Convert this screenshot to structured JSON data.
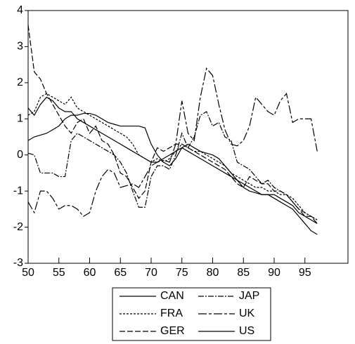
{
  "chart_data": {
    "type": "line",
    "x": [
      50,
      51,
      52,
      53,
      54,
      55,
      56,
      57,
      58,
      59,
      60,
      61,
      62,
      63,
      64,
      65,
      66,
      67,
      68,
      69,
      70,
      71,
      72,
      73,
      74,
      75,
      76,
      77,
      78,
      79,
      80,
      81,
      82,
      83,
      84,
      85,
      86,
      87,
      88,
      89,
      90,
      91,
      92,
      93,
      94,
      95,
      96,
      97
    ],
    "xlim": [
      50,
      102
    ],
    "xticks": [
      50,
      55,
      60,
      65,
      70,
      75,
      80,
      85,
      90,
      95
    ],
    "ylim": [
      -3,
      4
    ],
    "yticks": [
      -3,
      -2,
      -1,
      0,
      1,
      2,
      3,
      4
    ],
    "series": [
      {
        "name": "CAN",
        "color": "#000000",
        "dash": "none",
        "values": [
          0.4,
          0.5,
          0.55,
          0.6,
          0.7,
          0.8,
          1.0,
          1.1,
          1.1,
          1.15,
          1.15,
          1.1,
          1.0,
          0.9,
          0.85,
          0.8,
          0.8,
          0.8,
          0.8,
          0.75,
          0.3,
          0.0,
          -0.2,
          -0.3,
          -0.1,
          0.2,
          0.3,
          0.2,
          0.1,
          0.05,
          0.0,
          -0.1,
          -0.3,
          -0.5,
          -0.7,
          -0.9,
          -1.0,
          -1.05,
          -1.1,
          -1.1,
          -1.1,
          -1.2,
          -1.3,
          -1.4,
          -1.6,
          -1.7,
          -1.8,
          -1.9
        ]
      },
      {
        "name": "FRA",
        "color": "#000000",
        "dash": "3,2",
        "values": [
          1.1,
          1.2,
          1.6,
          1.7,
          1.6,
          1.5,
          1.4,
          1.6,
          1.3,
          1.2,
          1.1,
          1.0,
          0.9,
          0.8,
          0.7,
          0.6,
          0.5,
          0.3,
          0.0,
          -0.1,
          -0.2,
          -0.1,
          -0.2,
          -0.1,
          0.1,
          0.3,
          0.2,
          0.1,
          0.1,
          0.0,
          -0.1,
          -0.2,
          -0.3,
          -0.5,
          -0.6,
          -0.7,
          -0.8,
          -0.9,
          -0.9,
          -1.0,
          -1.0,
          -1.1,
          -1.1,
          -1.2,
          -1.4,
          -1.6,
          -1.7,
          -1.8
        ]
      },
      {
        "name": "GER",
        "color": "#000000",
        "dash": "8,3",
        "values": [
          3.6,
          2.3,
          2.1,
          1.7,
          1.4,
          1.1,
          0.8,
          0.6,
          0.9,
          1.0,
          0.6,
          0.8,
          0.4,
          0.3,
          0.0,
          -0.5,
          -0.6,
          -0.9,
          -1.2,
          -1.0,
          -0.2,
          0.2,
          0.1,
          0.2,
          0.3,
          0.3,
          0.2,
          0.1,
          0.0,
          -0.1,
          -0.2,
          -0.3,
          -0.4,
          -0.6,
          -0.8,
          -0.9,
          -0.6,
          -0.7,
          -0.8,
          -0.8,
          -1.0,
          -1.0,
          -1.1,
          -1.3,
          -1.5,
          -1.7,
          -1.7,
          -1.9
        ]
      },
      {
        "name": "JAP",
        "color": "#000000",
        "dash": "8,2,2,2",
        "values": [
          0.05,
          0.0,
          -0.5,
          -0.5,
          -0.5,
          -0.6,
          -0.6,
          0.4,
          0.6,
          0.5,
          0.4,
          0.3,
          0.2,
          0.1,
          0.0,
          -0.2,
          -0.5,
          -1.0,
          -1.45,
          -1.45,
          -0.6,
          -0.3,
          -0.3,
          -0.4,
          0.0,
          0.6,
          0.2,
          0.5,
          1.1,
          1.2,
          0.8,
          0.9,
          0.5,
          0.4,
          -0.2,
          -0.3,
          -0.4,
          -0.6,
          -0.8,
          -0.7,
          -0.9,
          -1.0,
          -1.1,
          -1.3,
          -1.5,
          -1.6,
          -1.7,
          -1.8
        ]
      },
      {
        "name": "UK",
        "color": "#000000",
        "dash": "12,3,4,3",
        "values": [
          -1.3,
          -1.6,
          -1.0,
          -1.0,
          -1.2,
          -1.5,
          -1.4,
          -1.4,
          -1.5,
          -1.7,
          -1.6,
          -1.0,
          -0.6,
          -0.4,
          -0.5,
          -0.9,
          -0.85,
          -0.8,
          -0.9,
          -0.6,
          -0.3,
          -0.2,
          -0.15,
          -0.2,
          0.3,
          1.5,
          0.6,
          0.4,
          1.6,
          2.4,
          2.2,
          1.4,
          0.7,
          0.3,
          0.25,
          0.4,
          0.8,
          1.6,
          1.4,
          1.2,
          1.1,
          1.5,
          1.7,
          0.9,
          1.0,
          1.0,
          1.0,
          0.1
        ]
      },
      {
        "name": "US",
        "color": "#000000",
        "dash": "none",
        "values": [
          1.3,
          1.1,
          1.4,
          1.6,
          1.5,
          1.3,
          1.2,
          1.2,
          1.0,
          0.9,
          0.8,
          0.7,
          0.6,
          0.5,
          0.4,
          0.3,
          0.2,
          0.1,
          0.0,
          -0.1,
          -0.2,
          -0.2,
          -0.1,
          0.0,
          0.1,
          0.2,
          0.1,
          0.0,
          -0.1,
          -0.2,
          -0.3,
          -0.4,
          -0.5,
          -0.6,
          -0.7,
          -0.8,
          -0.9,
          -1.0,
          -1.1,
          -1.1,
          -1.2,
          -1.3,
          -1.4,
          -1.5,
          -1.7,
          -1.9,
          -2.1,
          -2.2
        ]
      }
    ]
  }
}
